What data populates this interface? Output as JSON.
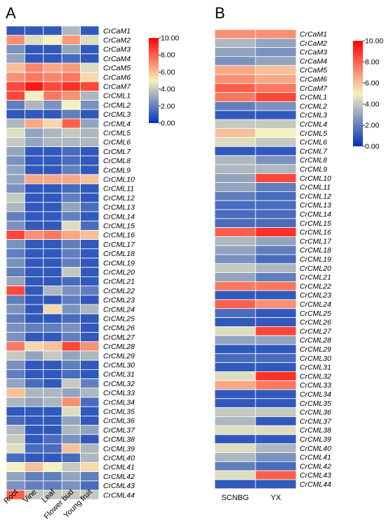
{
  "colors": {
    "high": "#ff0000",
    "mid": "#f5f0c0",
    "low": "#0033bb"
  },
  "chart_data": [
    {
      "panel_label": "A",
      "type": "heatmap",
      "columns": [
        "Root",
        "Vine",
        "Leaf",
        "Flower bud",
        "Young fruit"
      ],
      "rows": [
        "CrCaM1",
        "CrCaM2",
        "CrCaM3",
        "CrCaM4",
        "CrCaM5",
        "CrCaM6",
        "CrCaM7",
        "CrCML1",
        "CrCML2",
        "CrCML3",
        "CrCML4",
        "CrCML5",
        "CrCML6",
        "CrCML7",
        "CrCML8",
        "CrCML9",
        "CrCML10",
        "CrCML11",
        "CrCML12",
        "CrCML13",
        "CrCML14",
        "CrCML15",
        "CrCML16",
        "CrCML17",
        "CrCML18",
        "CrCML19",
        "CrCML20",
        "CrCML21",
        "CrCML22",
        "CrCML23",
        "CrCML24",
        "CrCML25",
        "CrCML26",
        "CrCML27",
        "CrCML28",
        "CrCML29",
        "CrCML30",
        "CrCML31",
        "CrCML32",
        "CrCML33",
        "CrCML34",
        "CrCML35",
        "CrCML36",
        "CrCML37",
        "CrCML38",
        "CrCML39",
        "CrCML40",
        "CrCML41",
        "CrCML42",
        "CrCML43",
        "CrCML44"
      ],
      "values": [
        [
          1.0,
          1.0,
          1.0,
          3.5,
          1.0
        ],
        [
          7.0,
          4.5,
          5.0,
          6.8,
          4.5
        ],
        [
          2.5,
          1.0,
          1.0,
          3.0,
          1.0
        ],
        [
          3.0,
          1.0,
          1.0,
          1.5,
          1.0
        ],
        [
          6.0,
          7.2,
          6.5,
          6.8,
          4.5
        ],
        [
          7.0,
          7.5,
          7.2,
          7.5,
          5.5
        ],
        [
          8.5,
          9.5,
          8.5,
          9.0,
          8.5
        ],
        [
          8.5,
          5.0,
          7.5,
          7.0,
          3.5
        ],
        [
          2.0,
          3.5,
          2.5,
          5.0,
          2.5
        ],
        [
          1.0,
          1.0,
          1.0,
          2.0,
          1.0
        ],
        [
          3.5,
          6.5,
          5.5,
          8.0,
          3.0
        ],
        [
          4.5,
          3.0,
          3.5,
          4.0,
          3.5
        ],
        [
          4.0,
          3.0,
          3.5,
          3.5,
          3.5
        ],
        [
          3.0,
          1.0,
          1.0,
          1.5,
          1.0
        ],
        [
          2.5,
          1.0,
          1.0,
          1.5,
          1.0
        ],
        [
          3.0,
          1.0,
          1.0,
          2.0,
          1.0
        ],
        [
          3.0,
          6.5,
          6.5,
          6.5,
          6.0
        ],
        [
          2.5,
          1.0,
          1.0,
          1.5,
          1.0
        ],
        [
          4.0,
          1.0,
          1.0,
          2.0,
          1.0
        ],
        [
          3.5,
          1.0,
          1.0,
          3.0,
          1.5
        ],
        [
          2.0,
          1.0,
          1.0,
          2.0,
          1.0
        ],
        [
          2.5,
          1.0,
          1.0,
          4.5,
          1.5
        ],
        [
          8.5,
          7.0,
          7.5,
          6.5,
          6.0
        ],
        [
          2.5,
          1.0,
          1.0,
          2.0,
          1.0
        ],
        [
          2.0,
          1.0,
          1.0,
          2.0,
          1.0
        ],
        [
          2.5,
          1.0,
          1.0,
          2.0,
          1.0
        ],
        [
          2.0,
          1.0,
          1.0,
          4.0,
          1.0
        ],
        [
          3.0,
          1.0,
          1.0,
          1.5,
          1.0
        ],
        [
          8.5,
          1.0,
          3.5,
          2.5,
          2.0
        ],
        [
          2.0,
          1.0,
          1.0,
          2.0,
          1.0
        ],
        [
          2.5,
          1.0,
          5.5,
          2.5,
          3.5
        ],
        [
          2.0,
          1.0,
          1.0,
          1.5,
          1.0
        ],
        [
          2.5,
          2.0,
          2.0,
          2.5,
          1.0
        ],
        [
          2.5,
          1.0,
          1.0,
          2.0,
          1.0
        ],
        [
          7.5,
          5.5,
          6.0,
          8.5,
          7.0
        ],
        [
          4.0,
          3.0,
          4.0,
          3.0,
          3.5
        ],
        [
          2.5,
          1.0,
          1.0,
          2.0,
          1.0
        ],
        [
          2.0,
          1.0,
          1.0,
          1.5,
          1.0
        ],
        [
          3.0,
          1.5,
          1.0,
          4.0,
          2.0
        ],
        [
          6.0,
          3.5,
          3.5,
          3.0,
          3.5
        ],
        [
          3.5,
          3.0,
          3.5,
          7.0,
          1.5
        ],
        [
          1.0,
          1.0,
          1.0,
          4.5,
          1.0
        ],
        [
          1.5,
          1.0,
          1.0,
          3.0,
          1.0
        ],
        [
          3.5,
          1.0,
          1.0,
          3.5,
          3.0
        ],
        [
          4.0,
          1.0,
          1.5,
          2.5,
          1.0
        ],
        [
          4.5,
          1.5,
          1.5,
          6.0,
          3.5
        ],
        [
          1.5,
          1.0,
          1.0,
          1.5,
          3.5
        ],
        [
          5.0,
          6.0,
          5.0,
          4.0,
          5.5
        ],
        [
          3.0,
          2.0,
          2.0,
          3.0,
          2.0
        ],
        [
          2.5,
          2.0,
          2.0,
          2.5,
          1.5
        ],
        [
          8.0,
          4.0,
          4.0,
          4.0,
          4.0
        ]
      ],
      "legend": {
        "ticks": [
          "10.00",
          "8.00",
          "6.00",
          "4.00",
          "2.00",
          "0.00"
        ],
        "min": 0,
        "max": 10
      }
    },
    {
      "panel_label": "B",
      "type": "heatmap",
      "columns": [
        "SCNBG",
        "YX"
      ],
      "rows": [
        "CrCaM1",
        "CrCaM2",
        "CrCaM3",
        "CrCaM4",
        "CrCaM5",
        "CrCaM6",
        "CrCaM7",
        "CrCML1",
        "CrCML2",
        "CrCML3",
        "CrCML4",
        "CrCML5",
        "CrCML6",
        "CrCML7",
        "CrCML8",
        "CrCML9",
        "CrCML10",
        "CrCML11",
        "CrCML12",
        "CrCML13",
        "CrCML14",
        "CrCML15",
        "CrCML16",
        "CrCML17",
        "CrCML18",
        "CrCML19",
        "CrCML20",
        "CrCML21",
        "CrCML22",
        "CrCML23",
        "CrCML24",
        "CrCML25",
        "CrCML26",
        "CrCML27",
        "CrCML28",
        "CrCML29",
        "CrCML30",
        "CrCML31",
        "CrCML32",
        "CrCML33",
        "CrCML34",
        "CrCML35",
        "CrCML36",
        "CrCML37",
        "CrCML38",
        "CrCML39",
        "CrCML40",
        "CrCML41",
        "CrCML42",
        "CrCML43",
        "CrCML44"
      ],
      "values": [
        [
          7.0,
          7.0
        ],
        [
          3.5,
          3.0
        ],
        [
          3.0,
          2.5
        ],
        [
          2.5,
          3.0
        ],
        [
          6.5,
          6.0
        ],
        [
          7.0,
          6.5
        ],
        [
          8.0,
          7.5
        ],
        [
          7.5,
          8.5
        ],
        [
          2.0,
          2.5
        ],
        [
          1.0,
          1.0
        ],
        [
          4.0,
          4.0
        ],
        [
          6.0,
          5.0
        ],
        [
          4.5,
          4.0
        ],
        [
          1.0,
          1.0
        ],
        [
          3.5,
          2.5
        ],
        [
          3.5,
          3.5
        ],
        [
          3.0,
          8.5
        ],
        [
          3.0,
          2.0
        ],
        [
          2.0,
          1.5
        ],
        [
          1.5,
          1.5
        ],
        [
          1.5,
          1.5
        ],
        [
          1.5,
          1.5
        ],
        [
          8.0,
          9.0
        ],
        [
          3.5,
          3.0
        ],
        [
          3.0,
          2.0
        ],
        [
          2.5,
          1.5
        ],
        [
          4.0,
          3.5
        ],
        [
          3.0,
          2.0
        ],
        [
          7.5,
          7.5
        ],
        [
          1.0,
          1.0
        ],
        [
          8.0,
          7.0
        ],
        [
          1.5,
          1.0
        ],
        [
          1.0,
          1.0
        ],
        [
          4.5,
          8.5
        ],
        [
          3.0,
          3.0
        ],
        [
          1.0,
          1.0
        ],
        [
          1.5,
          1.5
        ],
        [
          1.0,
          1.0
        ],
        [
          4.5,
          9.0
        ],
        [
          6.5,
          7.5
        ],
        [
          1.0,
          1.0
        ],
        [
          1.0,
          1.0
        ],
        [
          4.0,
          4.0
        ],
        [
          3.5,
          1.0
        ],
        [
          4.5,
          4.5
        ],
        [
          1.0,
          1.0
        ],
        [
          4.5,
          3.5
        ],
        [
          3.5,
          2.5
        ],
        [
          2.0,
          1.5
        ],
        [
          4.5,
          8.0
        ],
        [
          1.0,
          1.0
        ]
      ],
      "legend": {
        "ticks": [
          "10.00",
          "8.00",
          "6.00",
          "4.00",
          "2.00",
          "0.00"
        ],
        "min": 0,
        "max": 10
      }
    }
  ]
}
